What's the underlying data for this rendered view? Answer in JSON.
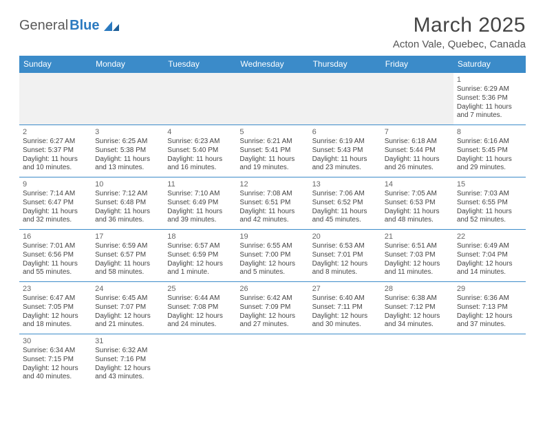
{
  "brand": {
    "part1": "General",
    "part2": "Blue"
  },
  "title": "March 2025",
  "location": "Acton Vale, Quebec, Canada",
  "colors": {
    "header_bg": "#3b8bc9",
    "header_text": "#ffffff",
    "border": "#3b8bc9",
    "brand_grey": "#5a5a5a",
    "brand_blue": "#2b7ac0"
  },
  "weekdays": [
    "Sunday",
    "Monday",
    "Tuesday",
    "Wednesday",
    "Thursday",
    "Friday",
    "Saturday"
  ],
  "weeks": [
    [
      null,
      null,
      null,
      null,
      null,
      null,
      {
        "day": "1",
        "sunrise": "Sunrise: 6:29 AM",
        "sunset": "Sunset: 5:36 PM",
        "daylight": "Daylight: 11 hours and 7 minutes."
      }
    ],
    [
      {
        "day": "2",
        "sunrise": "Sunrise: 6:27 AM",
        "sunset": "Sunset: 5:37 PM",
        "daylight": "Daylight: 11 hours and 10 minutes."
      },
      {
        "day": "3",
        "sunrise": "Sunrise: 6:25 AM",
        "sunset": "Sunset: 5:38 PM",
        "daylight": "Daylight: 11 hours and 13 minutes."
      },
      {
        "day": "4",
        "sunrise": "Sunrise: 6:23 AM",
        "sunset": "Sunset: 5:40 PM",
        "daylight": "Daylight: 11 hours and 16 minutes."
      },
      {
        "day": "5",
        "sunrise": "Sunrise: 6:21 AM",
        "sunset": "Sunset: 5:41 PM",
        "daylight": "Daylight: 11 hours and 19 minutes."
      },
      {
        "day": "6",
        "sunrise": "Sunrise: 6:19 AM",
        "sunset": "Sunset: 5:43 PM",
        "daylight": "Daylight: 11 hours and 23 minutes."
      },
      {
        "day": "7",
        "sunrise": "Sunrise: 6:18 AM",
        "sunset": "Sunset: 5:44 PM",
        "daylight": "Daylight: 11 hours and 26 minutes."
      },
      {
        "day": "8",
        "sunrise": "Sunrise: 6:16 AM",
        "sunset": "Sunset: 5:45 PM",
        "daylight": "Daylight: 11 hours and 29 minutes."
      }
    ],
    [
      {
        "day": "9",
        "sunrise": "Sunrise: 7:14 AM",
        "sunset": "Sunset: 6:47 PM",
        "daylight": "Daylight: 11 hours and 32 minutes."
      },
      {
        "day": "10",
        "sunrise": "Sunrise: 7:12 AM",
        "sunset": "Sunset: 6:48 PM",
        "daylight": "Daylight: 11 hours and 36 minutes."
      },
      {
        "day": "11",
        "sunrise": "Sunrise: 7:10 AM",
        "sunset": "Sunset: 6:49 PM",
        "daylight": "Daylight: 11 hours and 39 minutes."
      },
      {
        "day": "12",
        "sunrise": "Sunrise: 7:08 AM",
        "sunset": "Sunset: 6:51 PM",
        "daylight": "Daylight: 11 hours and 42 minutes."
      },
      {
        "day": "13",
        "sunrise": "Sunrise: 7:06 AM",
        "sunset": "Sunset: 6:52 PM",
        "daylight": "Daylight: 11 hours and 45 minutes."
      },
      {
        "day": "14",
        "sunrise": "Sunrise: 7:05 AM",
        "sunset": "Sunset: 6:53 PM",
        "daylight": "Daylight: 11 hours and 48 minutes."
      },
      {
        "day": "15",
        "sunrise": "Sunrise: 7:03 AM",
        "sunset": "Sunset: 6:55 PM",
        "daylight": "Daylight: 11 hours and 52 minutes."
      }
    ],
    [
      {
        "day": "16",
        "sunrise": "Sunrise: 7:01 AM",
        "sunset": "Sunset: 6:56 PM",
        "daylight": "Daylight: 11 hours and 55 minutes."
      },
      {
        "day": "17",
        "sunrise": "Sunrise: 6:59 AM",
        "sunset": "Sunset: 6:57 PM",
        "daylight": "Daylight: 11 hours and 58 minutes."
      },
      {
        "day": "18",
        "sunrise": "Sunrise: 6:57 AM",
        "sunset": "Sunset: 6:59 PM",
        "daylight": "Daylight: 12 hours and 1 minute."
      },
      {
        "day": "19",
        "sunrise": "Sunrise: 6:55 AM",
        "sunset": "Sunset: 7:00 PM",
        "daylight": "Daylight: 12 hours and 5 minutes."
      },
      {
        "day": "20",
        "sunrise": "Sunrise: 6:53 AM",
        "sunset": "Sunset: 7:01 PM",
        "daylight": "Daylight: 12 hours and 8 minutes."
      },
      {
        "day": "21",
        "sunrise": "Sunrise: 6:51 AM",
        "sunset": "Sunset: 7:03 PM",
        "daylight": "Daylight: 12 hours and 11 minutes."
      },
      {
        "day": "22",
        "sunrise": "Sunrise: 6:49 AM",
        "sunset": "Sunset: 7:04 PM",
        "daylight": "Daylight: 12 hours and 14 minutes."
      }
    ],
    [
      {
        "day": "23",
        "sunrise": "Sunrise: 6:47 AM",
        "sunset": "Sunset: 7:05 PM",
        "daylight": "Daylight: 12 hours and 18 minutes."
      },
      {
        "day": "24",
        "sunrise": "Sunrise: 6:45 AM",
        "sunset": "Sunset: 7:07 PM",
        "daylight": "Daylight: 12 hours and 21 minutes."
      },
      {
        "day": "25",
        "sunrise": "Sunrise: 6:44 AM",
        "sunset": "Sunset: 7:08 PM",
        "daylight": "Daylight: 12 hours and 24 minutes."
      },
      {
        "day": "26",
        "sunrise": "Sunrise: 6:42 AM",
        "sunset": "Sunset: 7:09 PM",
        "daylight": "Daylight: 12 hours and 27 minutes."
      },
      {
        "day": "27",
        "sunrise": "Sunrise: 6:40 AM",
        "sunset": "Sunset: 7:11 PM",
        "daylight": "Daylight: 12 hours and 30 minutes."
      },
      {
        "day": "28",
        "sunrise": "Sunrise: 6:38 AM",
        "sunset": "Sunset: 7:12 PM",
        "daylight": "Daylight: 12 hours and 34 minutes."
      },
      {
        "day": "29",
        "sunrise": "Sunrise: 6:36 AM",
        "sunset": "Sunset: 7:13 PM",
        "daylight": "Daylight: 12 hours and 37 minutes."
      }
    ],
    [
      {
        "day": "30",
        "sunrise": "Sunrise: 6:34 AM",
        "sunset": "Sunset: 7:15 PM",
        "daylight": "Daylight: 12 hours and 40 minutes."
      },
      {
        "day": "31",
        "sunrise": "Sunrise: 6:32 AM",
        "sunset": "Sunset: 7:16 PM",
        "daylight": "Daylight: 12 hours and 43 minutes."
      },
      null,
      null,
      null,
      null,
      null
    ]
  ]
}
